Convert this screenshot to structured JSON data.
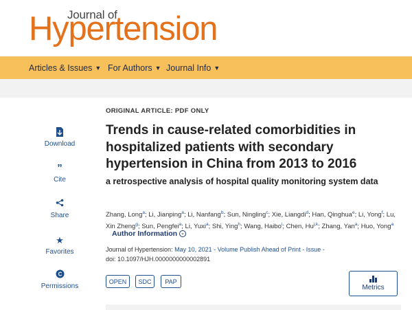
{
  "logo": {
    "top": "Journal of",
    "main": "Hypertension"
  },
  "nav": {
    "items": [
      {
        "label": "Articles & Issues"
      },
      {
        "label": "For Authors"
      },
      {
        "label": "Journal Info"
      }
    ],
    "chevron_icon": "chevron-down-icon"
  },
  "sidebar": {
    "items": [
      {
        "label": "Download",
        "icon": "pdf-download-icon"
      },
      {
        "label": "Cite",
        "icon": "quote-icon"
      },
      {
        "label": "Share",
        "icon": "share-icon"
      },
      {
        "label": "Favorites",
        "icon": "star-icon"
      },
      {
        "label": "Permissions",
        "icon": "copyright-icon"
      }
    ]
  },
  "article": {
    "type": "ORIGINAL ARTICLE: PDF ONLY",
    "title": "Trends in cause-related comorbidities in hospitalized patients with secondary hypertension in China from 2013 to 2016",
    "subtitle": "a retrospective analysis of hospital quality monitoring system data",
    "authors": [
      {
        "name": "Zhang, Long",
        "sup": "a"
      },
      {
        "name": "Li, Jianping",
        "sup": "a"
      },
      {
        "name": "Li, Nanfang",
        "sup": "b"
      },
      {
        "name": "Sun, Ningling",
        "sup": "c"
      },
      {
        "name": "Xie, Liangdi",
        "sup": "d"
      },
      {
        "name": "Han, Qinghua",
        "sup": "e"
      },
      {
        "name": "Li, Yong",
        "sup": "f"
      },
      {
        "name": "Lu, Xin Zheng",
        "sup": "g"
      },
      {
        "name": "Sun, Pengfei",
        "sup": "a"
      },
      {
        "name": "Li, Yuxi",
        "sup": "a"
      },
      {
        "name": "Shi, Ying",
        "sup": "h"
      },
      {
        "name": "Wang, Haibo",
        "sup": "i"
      },
      {
        "name": "Chen, Hu",
        "sup": "j,k"
      },
      {
        "name": "Zhang, Yan",
        "sup": "a"
      },
      {
        "name": "Huo, Yong",
        "sup": "a"
      }
    ],
    "author_info_label": "Author Information",
    "citation": {
      "journal": "Journal of Hypertension:",
      "date": "May 10, 2021 - Volume Publish Ahead of Print - Issue -",
      "doi": "doi: 10.1097/HJH.0000000000002891"
    },
    "badges": [
      "OPEN",
      "SDC",
      "PAP"
    ],
    "metrics_label": "Metrics"
  },
  "colors": {
    "brand_orange": "#e4711b",
    "nav_bg": "#f7c05b",
    "link_blue": "#1f4e8c"
  }
}
